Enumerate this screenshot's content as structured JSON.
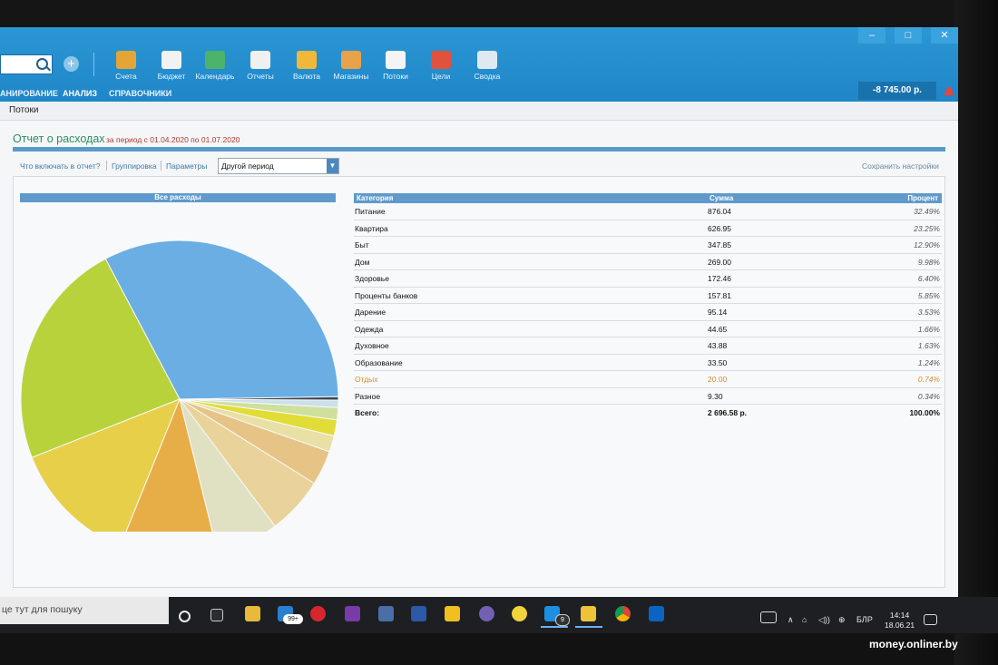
{
  "window": {
    "minimize": "–",
    "maximize": "□",
    "close": "✕"
  },
  "toolbar": {
    "plus": "+",
    "items": [
      {
        "label": "Счета",
        "icon": "wallet-icon",
        "color": "#e4a536"
      },
      {
        "label": "Бюджет",
        "icon": "budget-icon",
        "color": "#f2f2f2"
      },
      {
        "label": "Календарь",
        "icon": "calendar-icon",
        "color": "#4bb36a"
      },
      {
        "label": "Отчеты",
        "icon": "reports-icon",
        "color": "#f0f0f0"
      },
      {
        "label": "Валюта",
        "icon": "currency-icon",
        "color": "#f0b739"
      },
      {
        "label": "Магазины",
        "icon": "shop-icon",
        "color": "#e8a24a"
      },
      {
        "label": "Потоки",
        "icon": "flows-icon",
        "color": "#f4f4f4"
      },
      {
        "label": "Цели",
        "icon": "goals-icon",
        "color": "#e2513b"
      },
      {
        "label": "Сводка",
        "icon": "summary-icon",
        "color": "#dfe9f2"
      }
    ]
  },
  "menu": {
    "planning": "АНИРОВАНИЕ",
    "analysis": "АНАЛИЗ",
    "reference": "СПРАВОЧНИКИ"
  },
  "balance": "-8 745.00 р.",
  "subtab": "Потоки",
  "report": {
    "title": "Отчет о расходах",
    "period": "за период с 01.04.2020 по 01.07.2020",
    "options": {
      "include": "Что включать в отчет?",
      "grouping": "Группировка",
      "parameters": "Параметры"
    },
    "period_select": "Другой период",
    "save_settings": "Сохранить настройки"
  },
  "pie_title": "Все расходы",
  "table": {
    "headers": {
      "category": "Категория",
      "sum": "Сумма",
      "percent": "Процент"
    },
    "rows": [
      {
        "category": "Питание",
        "sum": "876.04",
        "percent": "32.49%"
      },
      {
        "category": "Квартира",
        "sum": "626.95",
        "percent": "23.25%"
      },
      {
        "category": "Быт",
        "sum": "347.85",
        "percent": "12.90%"
      },
      {
        "category": "Дом",
        "sum": "269.00",
        "percent": "9.98%"
      },
      {
        "category": "Здоровье",
        "sum": "172.46",
        "percent": "6.40%"
      },
      {
        "category": "Проценты банков",
        "sum": "157.81",
        "percent": "5.85%"
      },
      {
        "category": "Дарение",
        "sum": "95.14",
        "percent": "3.53%"
      },
      {
        "category": "Одежда",
        "sum": "44.65",
        "percent": "1.66%"
      },
      {
        "category": "Духовное",
        "sum": "43.88",
        "percent": "1.63%"
      },
      {
        "category": "Образование",
        "sum": "33.50",
        "percent": "1.24%"
      },
      {
        "category": "Отдых",
        "sum": "20.00",
        "percent": "0.74%"
      },
      {
        "category": "Разное",
        "sum": "9.30",
        "percent": "0.34%"
      }
    ],
    "total": {
      "label": "Всего:",
      "sum": "2 696.58 р.",
      "percent": "100.00%"
    }
  },
  "pie": {
    "values": [
      876.04,
      626.95,
      347.85,
      269.0,
      172.46,
      157.81,
      95.14,
      44.65,
      43.88,
      33.5,
      20.0,
      9.3
    ],
    "colors": [
      "#6aaee3",
      "#b8d23c",
      "#e7cf4a",
      "#e7ae48",
      "#dfe1c2",
      "#e9d39a",
      "#e6c485",
      "#e8e0a4",
      "#e2dc36",
      "#cfdf9c",
      "#cbe0ea",
      "#3b4750"
    ]
  },
  "taskbar": {
    "search_placeholder": "це тут для пошуку",
    "mail_badge": "99+",
    "tasks_badge": "9",
    "lang": "БЛР",
    "time": "14:14",
    "date": "18.06.21"
  },
  "watermark": "money.onliner.by"
}
